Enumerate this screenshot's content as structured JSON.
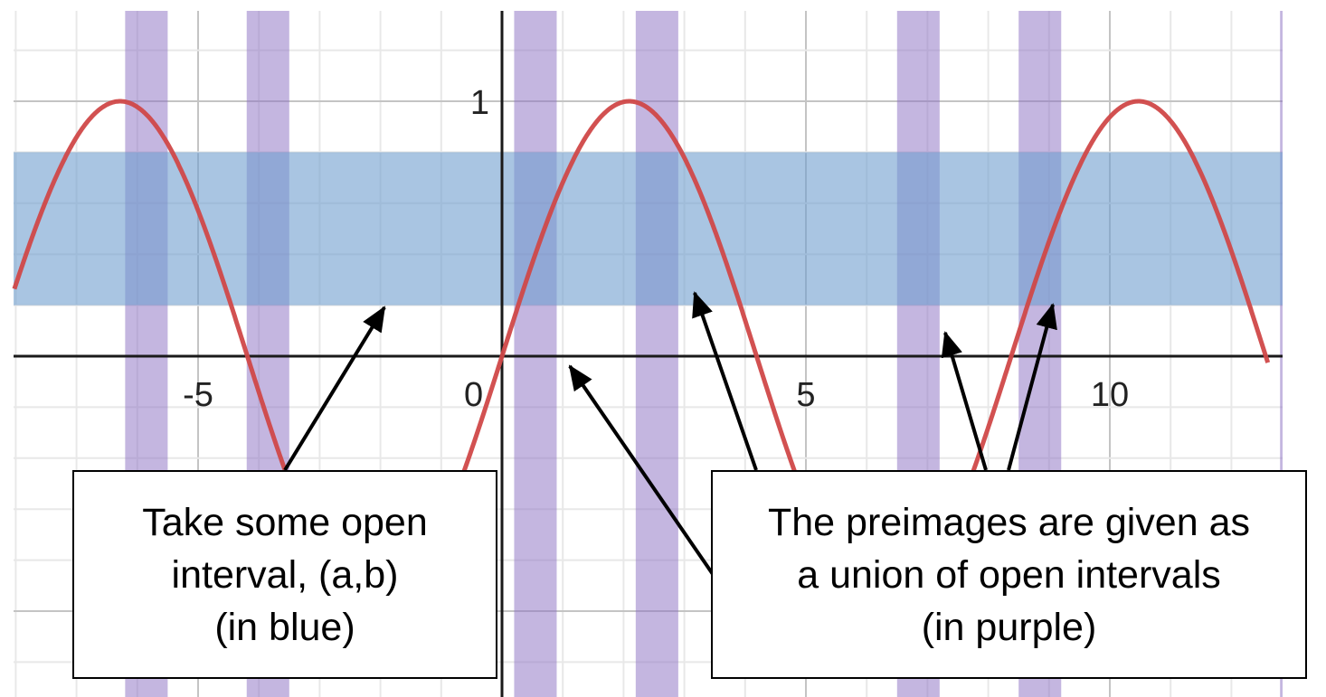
{
  "chart_data": {
    "type": "line",
    "function": "sin(0.75x)",
    "x_range": [
      -8.2,
      12.6
    ],
    "y_range": [
      -1.3,
      1.4
    ],
    "x_ticks": [
      {
        "value": -5,
        "label": "-5"
      },
      {
        "value": 0,
        "label": "0"
      },
      {
        "value": 5,
        "label": "5"
      },
      {
        "value": 10,
        "label": "10"
      }
    ],
    "y_ticks": [
      {
        "value": 1,
        "label": "1"
      }
    ],
    "grid": true,
    "blue_interval": {
      "y_from": 0.2,
      "y_to": 0.8
    },
    "purple_intervals": [
      {
        "x_from": -6.2,
        "x_to": -5.5
      },
      {
        "x_from": -4.2,
        "x_to": -3.5
      },
      {
        "x_from": 0.2,
        "x_to": 0.9
      },
      {
        "x_from": 2.2,
        "x_to": 2.9
      },
      {
        "x_from": 6.5,
        "x_to": 7.2
      },
      {
        "x_from": 8.5,
        "x_to": 9.2
      },
      {
        "x_from": 12.8,
        "x_to": 13.5
      }
    ],
    "colors": {
      "curve": "#d04848",
      "blue_band": "#6f9fcf",
      "purple_band": "#8a6ec2",
      "axis": "#1a1a1a",
      "grid_major": "#c4c4c4",
      "grid_minor": "#e8e8e8"
    }
  },
  "callouts": {
    "left": {
      "lines": [
        "Take some open",
        "interval, (a,b)",
        "(in blue)"
      ]
    },
    "right": {
      "lines": [
        "The preimages are given as",
        "a union of open intervals",
        "(in purple)"
      ]
    }
  }
}
